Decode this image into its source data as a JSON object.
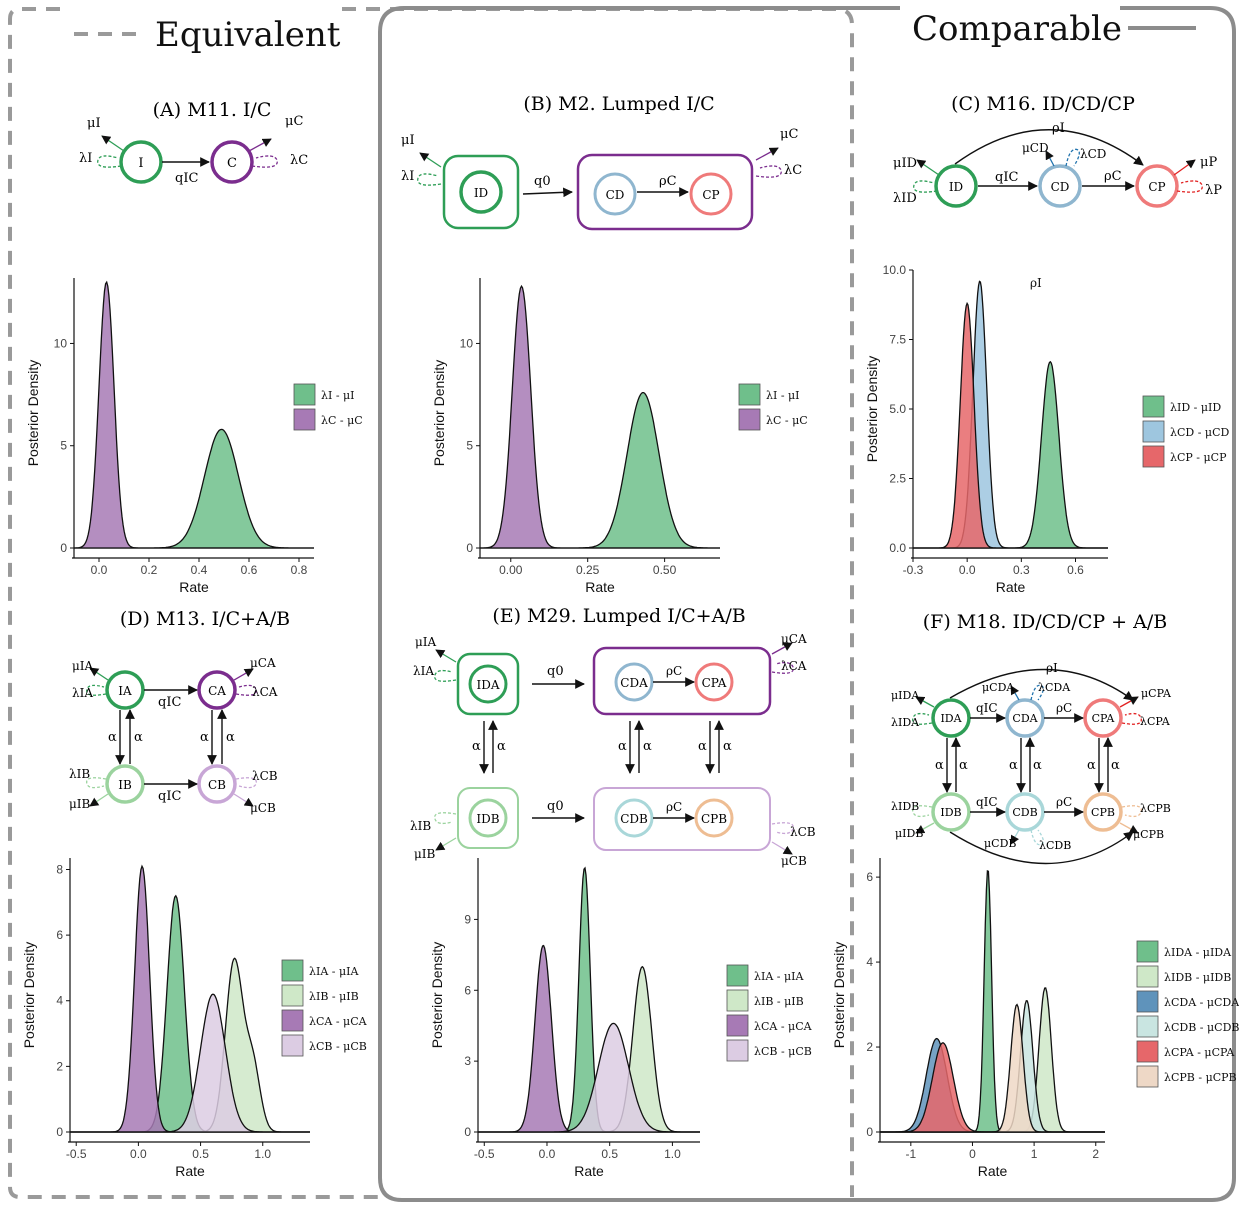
{
  "colors": {
    "green": "#2e9e56",
    "green_light": "#9bd39e",
    "purple": "#7b2d8e",
    "purple_light": "#c8a6d6",
    "blue": "#8fb6cf",
    "blue_light": "#a9d7d9",
    "red": "#ef7a7a",
    "peach": "#eebd93",
    "frame_gray": "#8c8c8c",
    "fill_green": "#6fbf8b",
    "fill_green_light": "#cfe8c8",
    "fill_purple": "#a77ab5",
    "fill_purple_light": "#dccce3",
    "fill_blue": "#9ec6df",
    "fill_blue_light": "#c9e5e1",
    "fill_red": "#e6676a",
    "fill_peach": "#eed8c6",
    "fill_steel": "#5f93bb"
  },
  "frame": {
    "left_label": "Equivalent",
    "right_label": "Comparable"
  },
  "panels": [
    {
      "title": "(A) M11. I/C",
      "labels": [
        "μI",
        "λI",
        "I",
        "qIC",
        "C",
        "μC",
        "λC"
      ]
    },
    {
      "title": "(B) M2.   Lumped I/C",
      "labels": [
        "μI",
        "λI",
        "ID",
        "q0",
        "CD",
        "ρC",
        "CP",
        "μC",
        "λC"
      ]
    },
    {
      "title": "(C) M16. ID/CD/CP",
      "labels": [
        "ρI",
        "μID",
        "λID",
        "ID",
        "qIC",
        "CD",
        "μCD",
        "λCD",
        "ρC",
        "CP",
        "μP",
        "λP"
      ]
    },
    {
      "title": "(D) M13. I/C+A/B",
      "labels": [
        "μIA",
        "λIA",
        "IA",
        "qIC",
        "CA",
        "μCA",
        "λCA",
        "α",
        "α",
        "α",
        "α",
        "λIB",
        "μIB",
        "IB",
        "qIC",
        "CB",
        "λCB",
        "μCB"
      ]
    },
    {
      "title": "(E) M29. Lumped I/C+A/B",
      "labels": [
        "μIA",
        "λIA",
        "IDA",
        "q0",
        "CDA",
        "ρC",
        "CPA",
        "μCA",
        "λCA",
        "α",
        "α",
        "α",
        "α",
        "α",
        "α",
        "λIB",
        "μIB",
        "IDB",
        "q0",
        "CDB",
        "ρC",
        "CPB",
        "λCB",
        "μCB"
      ]
    },
    {
      "title": "(F) M18. ID/CD/CP + A/B",
      "labels": [
        "ρI",
        "μIDA",
        "λIDA",
        "IDA",
        "qIC",
        "CDA",
        "μCDA",
        "λCDA",
        "ρC",
        "CPA",
        "μCPA",
        "λCPA",
        "α",
        "α",
        "α",
        "α",
        "α",
        "α",
        "λIDB",
        "μIDB",
        "IDB",
        "qIC",
        "CDB",
        "μCDB",
        "λCDB",
        "ρC",
        "CPB",
        "λCPB",
        "μCPB"
      ]
    }
  ],
  "chart_data": [
    {
      "panel": "A",
      "type": "area",
      "xlabel": "Rate",
      "ylabel": "Posterior Density",
      "x_ticks": [
        "0.0",
        "0.2",
        "0.4",
        "0.6",
        "0.8"
      ],
      "y_ticks": [
        "0",
        "5",
        "10"
      ],
      "xlim": [
        -0.1,
        0.86
      ],
      "ylim": [
        0,
        13.2
      ],
      "series": [
        {
          "name": "λI - μI",
          "color": "#6fbf8b",
          "peaks": [
            {
              "mu": 0.49,
              "sd": 0.068,
              "h": 5.8
            }
          ]
        },
        {
          "name": "λC - μC",
          "color": "#a77ab5",
          "peaks": [
            {
              "mu": 0.03,
              "sd": 0.03,
              "h": 13.0
            }
          ]
        }
      ]
    },
    {
      "panel": "B",
      "type": "area",
      "xlabel": "Rate",
      "ylabel": "Posterior Density",
      "x_ticks": [
        "0.00",
        "0.25",
        "0.50"
      ],
      "y_ticks": [
        "0",
        "5",
        "10"
      ],
      "xlim": [
        -0.1,
        0.68
      ],
      "ylim": [
        0,
        13.2
      ],
      "series": [
        {
          "name": "λI - μI",
          "color": "#6fbf8b",
          "peaks": [
            {
              "mu": 0.43,
              "sd": 0.052,
              "h": 7.6
            }
          ]
        },
        {
          "name": "λC - μC",
          "color": "#a77ab5",
          "peaks": [
            {
              "mu": 0.035,
              "sd": 0.03,
              "h": 12.8
            }
          ]
        }
      ]
    },
    {
      "panel": "C",
      "type": "area",
      "xlabel": "Rate",
      "ylabel": "Posterior Density",
      "annotation": "ρI",
      "x_ticks": [
        "-0.3",
        "0.0",
        "0.3",
        "0.6"
      ],
      "y_ticks": [
        "0.0",
        "2.5",
        "5.0",
        "7.5",
        "10.0"
      ],
      "xlim": [
        -0.3,
        0.78
      ],
      "ylim": [
        0,
        10.0
      ],
      "series": [
        {
          "name": "λID - μID",
          "color": "#6fbf8b",
          "peaks": [
            {
              "mu": 0.46,
              "sd": 0.048,
              "h": 6.7
            }
          ]
        },
        {
          "name": "λCD - μCD",
          "color": "#9ec6df",
          "peaks": [
            {
              "mu": 0.07,
              "sd": 0.038,
              "h": 9.6
            }
          ]
        },
        {
          "name": "λCP - μCP",
          "color": "#e6676a",
          "peaks": [
            {
              "mu": 0.0,
              "sd": 0.038,
              "h": 8.8
            }
          ]
        }
      ]
    },
    {
      "panel": "D",
      "type": "area",
      "xlabel": "Rate",
      "ylabel": "Posterior Density",
      "x_ticks": [
        "-0.5",
        "0.0",
        "0.5",
        "1.0"
      ],
      "y_ticks": [
        "0",
        "2",
        "4",
        "6",
        "8"
      ],
      "xlim": [
        -0.55,
        1.38
      ],
      "ylim": [
        0,
        8.35
      ],
      "series": [
        {
          "name": "λIA - μIA",
          "color": "#6fbf8b",
          "peaks": [
            {
              "mu": 0.3,
              "sd": 0.07,
              "h": 7.2
            }
          ]
        },
        {
          "name": "λIB - μIB",
          "color": "#cfe8c8",
          "peaks": [
            {
              "mu": 0.77,
              "sd": 0.07,
              "h": 5.2
            },
            {
              "mu": 0.92,
              "sd": 0.06,
              "h": 2.0
            }
          ]
        },
        {
          "name": "λCA - μCA",
          "color": "#a77ab5",
          "peaks": [
            {
              "mu": 0.03,
              "sd": 0.06,
              "h": 8.1
            }
          ]
        },
        {
          "name": "λCB - μCB",
          "color": "#dccce3",
          "peaks": [
            {
              "mu": 0.6,
              "sd": 0.1,
              "h": 4.2
            }
          ]
        }
      ]
    },
    {
      "panel": "E",
      "type": "area",
      "xlabel": "Rate",
      "ylabel": "Posterior Density",
      "x_ticks": [
        "-0.5",
        "0.0",
        "0.5",
        "1.0"
      ],
      "y_ticks": [
        "0",
        "3",
        "6",
        "9"
      ],
      "xlim": [
        -0.55,
        1.22
      ],
      "ylim": [
        0,
        11.6
      ],
      "series": [
        {
          "name": "λIA - μIA",
          "color": "#6fbf8b",
          "peaks": [
            {
              "mu": 0.3,
              "sd": 0.045,
              "h": 11.2
            }
          ]
        },
        {
          "name": "λIB - μIB",
          "color": "#cfe8c8",
          "peaks": [
            {
              "mu": 0.76,
              "sd": 0.075,
              "h": 7.0
            }
          ]
        },
        {
          "name": "λCA - μCA",
          "color": "#a77ab5",
          "peaks": [
            {
              "mu": -0.03,
              "sd": 0.065,
              "h": 7.9
            }
          ]
        },
        {
          "name": "λCB - μCB",
          "color": "#dccce3",
          "peaks": [
            {
              "mu": 0.53,
              "sd": 0.12,
              "h": 4.6
            }
          ]
        }
      ]
    },
    {
      "panel": "F",
      "type": "area",
      "xlabel": "Rate",
      "ylabel": "Posterior Density",
      "x_ticks": [
        "-1",
        "0",
        "1",
        "2"
      ],
      "y_ticks": [
        "0",
        "2",
        "4",
        "6"
      ],
      "xlim": [
        -1.5,
        2.15
      ],
      "ylim": [
        0,
        6.45
      ],
      "series": [
        {
          "name": "λIDA - μIDA",
          "color": "#6fbf8b",
          "peaks": [
            {
              "mu": 0.25,
              "sd": 0.06,
              "h": 6.2
            }
          ]
        },
        {
          "name": "λIDB - μIDB",
          "color": "#cfe8c8",
          "peaks": [
            {
              "mu": 1.18,
              "sd": 0.1,
              "h": 3.4
            }
          ]
        },
        {
          "name": "λCDA - μCDA",
          "color": "#5f93bb",
          "peaks": [
            {
              "mu": -0.58,
              "sd": 0.17,
              "h": 2.2
            }
          ]
        },
        {
          "name": "λCDB - μCDB",
          "color": "#c9e5e1",
          "peaks": [
            {
              "mu": 0.88,
              "sd": 0.1,
              "h": 3.1
            }
          ]
        },
        {
          "name": "λCPA - μCPA",
          "color": "#e6676a",
          "peaks": [
            {
              "mu": -0.48,
              "sd": 0.17,
              "h": 2.1
            }
          ]
        },
        {
          "name": "λCPB - μCPB",
          "color": "#eed8c6",
          "peaks": [
            {
              "mu": 0.72,
              "sd": 0.1,
              "h": 3.0
            }
          ]
        }
      ]
    }
  ]
}
